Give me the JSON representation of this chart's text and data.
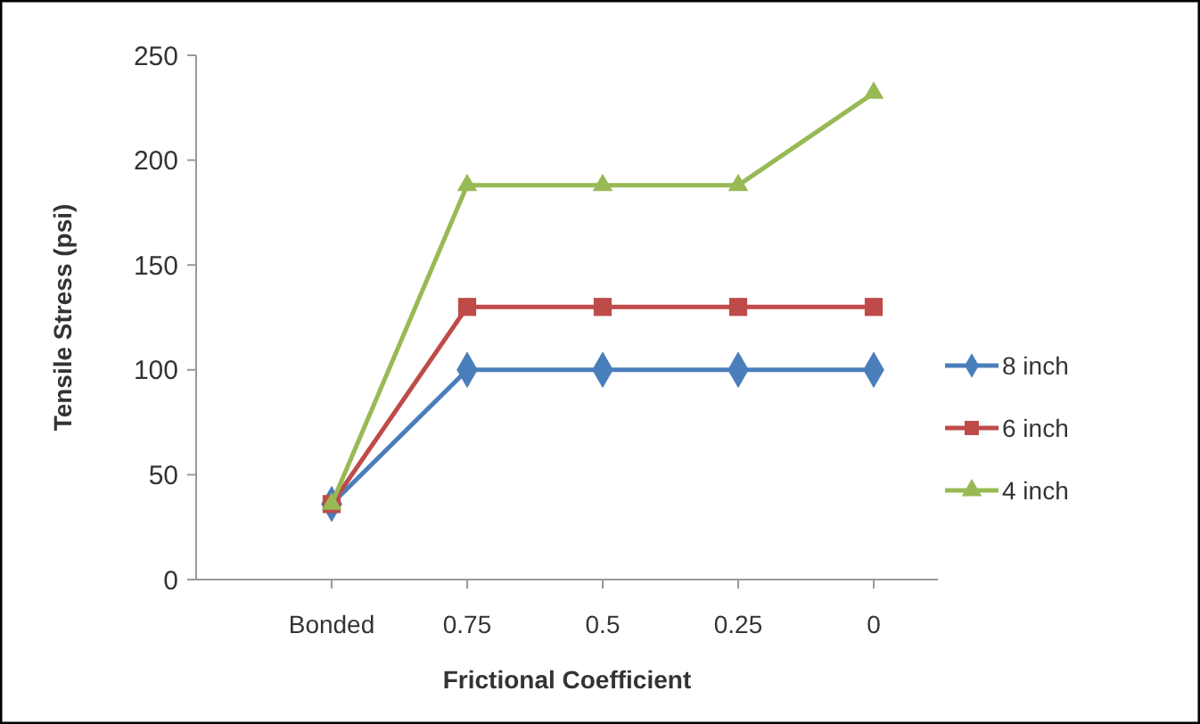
{
  "chart_data": {
    "type": "line",
    "xlabel": "Frictional Coefficient",
    "ylabel": "Tensile Stress (psi)",
    "categories": [
      "Bonded",
      "0.75",
      "0.5",
      "0.25",
      "0"
    ],
    "series": [
      {
        "name": "8 inch",
        "color": "#4a7ebb",
        "marker": "diamond",
        "values": [
          36,
          100,
          100,
          100,
          100
        ]
      },
      {
        "name": "6 inch",
        "color": "#be4b48",
        "marker": "square",
        "values": [
          36,
          130,
          130,
          130,
          130
        ]
      },
      {
        "name": "4 inch",
        "color": "#98b954",
        "marker": "triangle",
        "values": [
          36,
          188,
          188,
          188,
          232
        ]
      }
    ],
    "ylim": [
      0,
      250
    ],
    "yticks": [
      0,
      50,
      100,
      150,
      200,
      250
    ],
    "grid": false,
    "legend": "right"
  }
}
